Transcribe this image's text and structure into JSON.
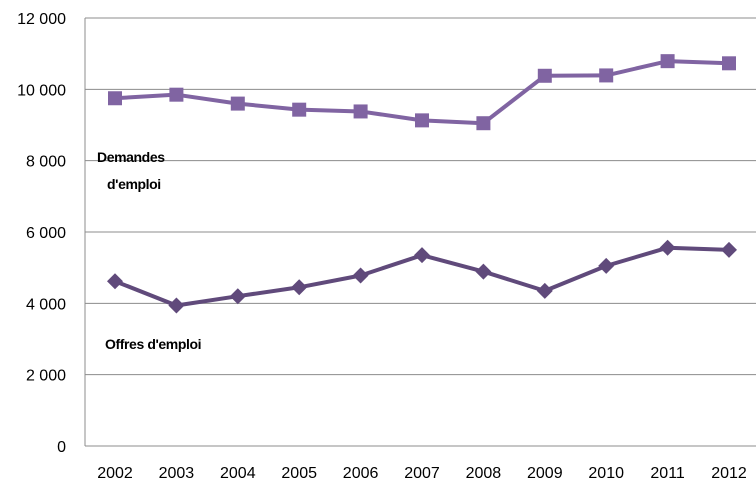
{
  "chart_data": {
    "type": "line",
    "title": "",
    "xlabel": "",
    "ylabel": "",
    "categories": [
      "2002",
      "2003",
      "2004",
      "2005",
      "2006",
      "2007",
      "2008",
      "2009",
      "2010",
      "2011",
      "2012"
    ],
    "ylim": [
      0,
      12000
    ],
    "yticks": [
      0,
      2000,
      4000,
      6000,
      8000,
      10000,
      12000
    ],
    "ytick_labels": [
      "0",
      "2 000",
      "4 000",
      "6 000",
      "8 000",
      "10 000",
      "12 000"
    ],
    "grid": true,
    "legend": "none",
    "series": [
      {
        "name": "Demandes d'emploi",
        "label_lines": [
          "Demandes",
          "d'emploi"
        ],
        "marker": "square",
        "color": "#8064a2",
        "values": [
          9750,
          9850,
          9600,
          9430,
          9380,
          9130,
          9050,
          10380,
          10390,
          10790,
          10730
        ]
      },
      {
        "name": "Offres d'emploi",
        "label_lines": [
          "Offres d'emploi"
        ],
        "marker": "diamond",
        "color": "#604a7b",
        "values": [
          4620,
          3940,
          4200,
          4450,
          4780,
          5350,
          4890,
          4350,
          5050,
          5560,
          5500
        ]
      }
    ]
  }
}
